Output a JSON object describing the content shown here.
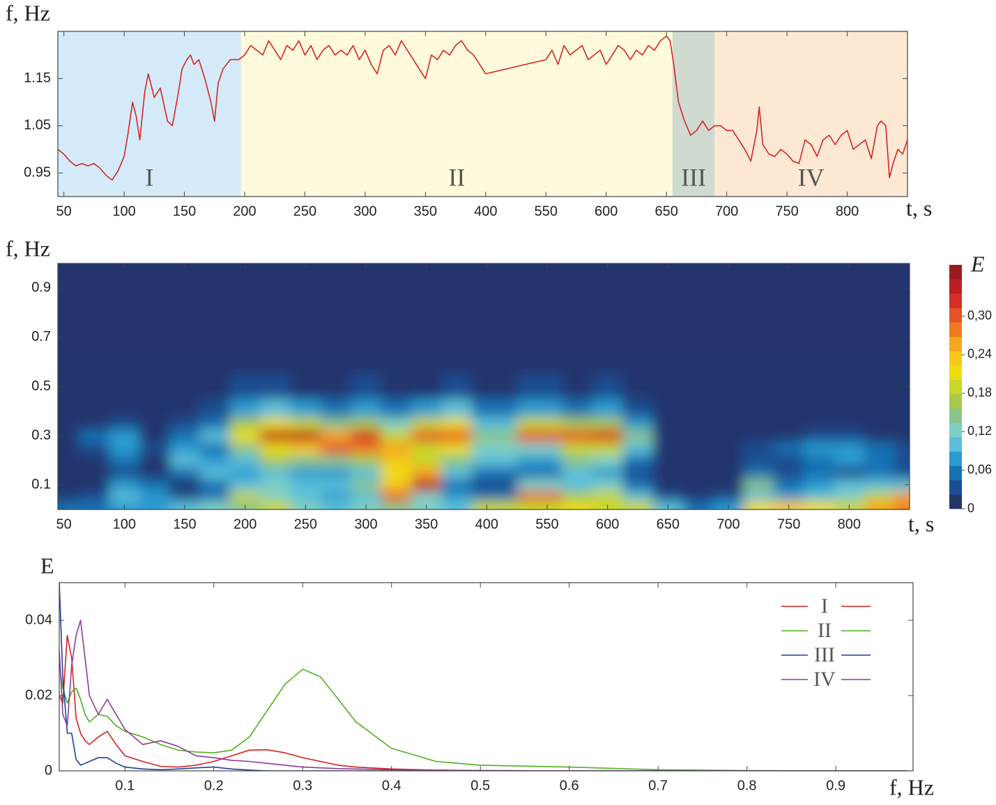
{
  "chart_data": [
    {
      "type": "line",
      "ylabel": "f, Hz",
      "xlabel": "t, s",
      "xlim": [
        45,
        850
      ],
      "xticks": [
        50,
        100,
        150,
        200,
        250,
        300,
        350,
        400,
        550,
        600,
        650,
        700,
        750,
        800
      ],
      "ylim": [
        0.9,
        1.25
      ],
      "yticks": [
        0.95,
        1.05,
        1.15
      ],
      "regions": [
        {
          "label": "I",
          "start": 45,
          "end": 197,
          "color": "#d5eaf8"
        },
        {
          "label": "II",
          "start": 197,
          "end": 655,
          "color": "#fefadb"
        },
        {
          "label": "III",
          "start": 655,
          "end": 690,
          "color": "#cfdbd0"
        },
        {
          "label": "IV",
          "start": 690,
          "end": 850,
          "color": "#fde8d3"
        }
      ],
      "x": [
        45,
        50,
        55,
        60,
        65,
        70,
        75,
        80,
        85,
        90,
        95,
        100,
        103,
        107,
        110,
        113,
        117,
        120,
        125,
        130,
        136,
        140,
        145,
        148,
        152,
        155,
        158,
        162,
        167,
        172,
        175,
        178,
        182,
        188,
        195,
        200,
        205,
        210,
        215,
        220,
        225,
        230,
        235,
        240,
        245,
        250,
        255,
        260,
        265,
        270,
        275,
        280,
        285,
        290,
        295,
        300,
        305,
        310,
        315,
        320,
        325,
        330,
        335,
        340,
        345,
        350,
        355,
        360,
        365,
        370,
        375,
        380,
        385,
        390,
        395,
        400,
        550,
        555,
        560,
        565,
        570,
        575,
        580,
        585,
        590,
        595,
        600,
        605,
        610,
        615,
        620,
        625,
        630,
        635,
        640,
        645,
        650,
        653,
        656,
        660,
        665,
        670,
        675,
        680,
        685,
        690,
        695,
        700,
        705,
        710,
        715,
        720,
        725,
        727,
        730,
        735,
        740,
        745,
        750,
        755,
        760,
        765,
        770,
        775,
        780,
        785,
        790,
        795,
        800,
        805,
        810,
        815,
        820,
        825,
        828,
        832,
        835,
        838,
        842,
        846,
        850
      ],
      "series": [
        {
          "color": "#d62424",
          "values": [
            1.0,
            0.99,
            0.975,
            0.965,
            0.97,
            0.965,
            0.97,
            0.96,
            0.945,
            0.935,
            0.955,
            0.985,
            1.03,
            1.1,
            1.07,
            1.02,
            1.12,
            1.16,
            1.11,
            1.13,
            1.06,
            1.05,
            1.12,
            1.17,
            1.19,
            1.2,
            1.18,
            1.19,
            1.15,
            1.1,
            1.06,
            1.14,
            1.17,
            1.19,
            1.19,
            1.2,
            1.22,
            1.21,
            1.2,
            1.23,
            1.21,
            1.19,
            1.22,
            1.21,
            1.23,
            1.2,
            1.22,
            1.19,
            1.21,
            1.22,
            1.2,
            1.21,
            1.2,
            1.22,
            1.19,
            1.21,
            1.18,
            1.16,
            1.21,
            1.22,
            1.2,
            1.23,
            1.21,
            1.19,
            1.17,
            1.15,
            1.2,
            1.19,
            1.21,
            1.2,
            1.22,
            1.23,
            1.21,
            1.2,
            1.18,
            1.16,
            1.19,
            1.21,
            1.18,
            1.22,
            1.2,
            1.21,
            1.22,
            1.19,
            1.2,
            1.21,
            1.18,
            1.2,
            1.22,
            1.21,
            1.19,
            1.21,
            1.2,
            1.22,
            1.21,
            1.23,
            1.24,
            1.23,
            1.18,
            1.1,
            1.06,
            1.03,
            1.04,
            1.06,
            1.04,
            1.05,
            1.05,
            1.04,
            1.04,
            1.02,
            1.0,
            0.975,
            1.04,
            1.09,
            1.01,
            0.99,
            0.985,
            1.0,
            0.99,
            0.975,
            0.97,
            1.02,
            1.01,
            0.985,
            1.02,
            1.03,
            1.01,
            1.03,
            1.04,
            1.0,
            1.01,
            1.02,
            0.98,
            1.05,
            1.06,
            1.05,
            0.94,
            0.97,
            1.0,
            0.99,
            1.02
          ]
        }
      ]
    },
    {
      "type": "heatmap",
      "ylabel": "f, Hz",
      "xlabel": "t, s",
      "colorbar_label": "E",
      "xlim": [
        45,
        850
      ],
      "xticks": [
        50,
        100,
        150,
        200,
        250,
        300,
        350,
        400,
        550,
        600,
        650,
        700,
        750,
        800
      ],
      "ylim": [
        0,
        1
      ],
      "yticks": [
        0.1,
        0.3,
        0.5,
        0.7,
        0.9
      ],
      "zlim": [
        0,
        0.38
      ],
      "zticks": [
        0,
        {
          "value": 0.06,
          "label": "0,06"
        },
        {
          "value": 0.12,
          "label": "0,12"
        },
        {
          "value": 0.18,
          "label": "0,18"
        },
        {
          "value": 0.24,
          "label": "0,24"
        },
        {
          "value": 0.3,
          "label": "0,30"
        }
      ],
      "colors": [
        "#24356e",
        "#1b4e90",
        "#1672b4",
        "#2a9bd0",
        "#5cbfd9",
        "#80cfc3",
        "#8ac48a",
        "#a6c94a",
        "#c8d62c",
        "#eddc10",
        "#f7c81a",
        "#f5a623",
        "#ee7b22",
        "#e4532a",
        "#d62f27",
        "#bb1f22",
        "#9b1a1d"
      ],
      "x": [
        50,
        75,
        100,
        125,
        150,
        175,
        200,
        225,
        250,
        275,
        300,
        325,
        350,
        375,
        400,
        550,
        575,
        600,
        625,
        650,
        675,
        700,
        725,
        750,
        775,
        800,
        825,
        850
      ],
      "y": [
        0.02,
        0.05,
        0.1,
        0.15,
        0.2,
        0.25,
        0.3,
        0.35,
        0.4,
        0.5
      ],
      "z": [
        [
          0.06,
          0.06,
          0.08,
          0.08,
          0.1,
          0.12,
          0.15,
          0.18,
          0.12,
          0.1,
          0.12,
          0.15,
          0.12,
          0.1,
          0.18,
          0.2,
          0.22,
          0.2,
          0.18,
          0.1,
          0.06,
          0.08,
          0.22,
          0.24,
          0.22,
          0.2,
          0.26,
          0.28
        ],
        [
          0.02,
          0.03,
          0.1,
          0.08,
          0.04,
          0.06,
          0.2,
          0.12,
          0.1,
          0.08,
          0.1,
          0.3,
          0.12,
          0.08,
          0.06,
          0.3,
          0.16,
          0.18,
          0.1,
          0.04,
          0.02,
          0.04,
          0.1,
          0.08,
          0.1,
          0.12,
          0.2,
          0.26
        ],
        [
          0,
          0.02,
          0.08,
          0.06,
          0.02,
          0.06,
          0.1,
          0.12,
          0.1,
          0.1,
          0.14,
          0.24,
          0.34,
          0.06,
          0.04,
          0.12,
          0.1,
          0.12,
          0.06,
          0.02,
          0,
          0.02,
          0.14,
          0.06,
          0.08,
          0.1,
          0.1,
          0.1
        ],
        [
          0,
          0,
          0.04,
          0.02,
          0.06,
          0.1,
          0.08,
          0.1,
          0.08,
          0.08,
          0.1,
          0.22,
          0.26,
          0.1,
          0.06,
          0.06,
          0.1,
          0.08,
          0.04,
          0,
          0,
          0,
          0.06,
          0.04,
          0.06,
          0.04,
          0.06,
          0.04
        ],
        [
          0,
          0.02,
          0.06,
          0.02,
          0.1,
          0.08,
          0.1,
          0.16,
          0.14,
          0.14,
          0.16,
          0.24,
          0.18,
          0.14,
          0.1,
          0.08,
          0.14,
          0.12,
          0.06,
          0,
          0,
          0,
          0.04,
          0.04,
          0.06,
          0.08,
          0.06,
          0.04
        ],
        [
          0,
          0.04,
          0.08,
          0.04,
          0.08,
          0.06,
          0.14,
          0.22,
          0.24,
          0.3,
          0.28,
          0.26,
          0.2,
          0.22,
          0.12,
          0.12,
          0.18,
          0.2,
          0.1,
          0,
          0,
          0.02,
          0.04,
          0.06,
          0.08,
          0.08,
          0.06,
          0.04
        ],
        [
          0,
          0.06,
          0.08,
          0.02,
          0.06,
          0.1,
          0.22,
          0.34,
          0.34,
          0.26,
          0.32,
          0.2,
          0.3,
          0.3,
          0.14,
          0.3,
          0.3,
          0.32,
          0.14,
          0,
          0,
          0,
          0.02,
          0.02,
          0.04,
          0.04,
          0.02,
          0.02
        ],
        [
          0,
          0.02,
          0.04,
          0,
          0.04,
          0.06,
          0.16,
          0.22,
          0.18,
          0.14,
          0.16,
          0.12,
          0.2,
          0.22,
          0.1,
          0.18,
          0.16,
          0.16,
          0.08,
          0,
          0,
          0,
          0,
          0,
          0,
          0,
          0,
          0
        ],
        [
          0,
          0,
          0.02,
          0,
          0.02,
          0.04,
          0.08,
          0.1,
          0.08,
          0.06,
          0.08,
          0.06,
          0.08,
          0.1,
          0.06,
          0.08,
          0.06,
          0.08,
          0.04,
          0,
          0,
          0,
          0,
          0,
          0,
          0,
          0,
          0
        ],
        [
          0,
          0,
          0,
          0,
          0,
          0,
          0.04,
          0.04,
          0.02,
          0.02,
          0.04,
          0.02,
          0.02,
          0.04,
          0.02,
          0.04,
          0.02,
          0.04,
          0,
          0,
          0,
          0,
          0,
          0,
          0,
          0,
          0,
          0
        ]
      ]
    },
    {
      "type": "line",
      "ylabel": "E",
      "xlabel": "f, Hz",
      "legend": "upper right",
      "xlim": [
        0.026,
        0.987
      ],
      "xticks": [
        0.1,
        0.2,
        0.3,
        0.4,
        0.5,
        0.6,
        0.7,
        0.8,
        0.9
      ],
      "ylim": [
        0,
        0.05
      ],
      "yticks": [
        0,
        0.02,
        0.04
      ],
      "x": [
        0.026,
        0.03,
        0.035,
        0.04,
        0.045,
        0.05,
        0.055,
        0.06,
        0.07,
        0.08,
        0.09,
        0.1,
        0.12,
        0.14,
        0.16,
        0.18,
        0.2,
        0.22,
        0.24,
        0.26,
        0.28,
        0.3,
        0.32,
        0.34,
        0.36,
        0.4,
        0.45,
        0.5,
        0.6,
        0.7,
        0.8,
        0.9,
        0.98
      ],
      "series": [
        {
          "name": "I",
          "color": "#d42020",
          "values": [
            0.02,
            0.018,
            0.036,
            0.03,
            0.014,
            0.01,
            0.008,
            0.007,
            0.009,
            0.0105,
            0.007,
            0.004,
            0.0025,
            0.0012,
            0.001,
            0.0015,
            0.0025,
            0.004,
            0.0055,
            0.0056,
            0.0048,
            0.0035,
            0.0025,
            0.0015,
            0.001,
            0.0005,
            0.0002,
            0.0001,
            0,
            0,
            0,
            0,
            0
          ]
        },
        {
          "name": "II",
          "color": "#4caf1e",
          "values": [
            0.028,
            0.022,
            0.018,
            0.021,
            0.022,
            0.019,
            0.015,
            0.013,
            0.015,
            0.0145,
            0.012,
            0.0105,
            0.009,
            0.007,
            0.0055,
            0.005,
            0.0048,
            0.0055,
            0.009,
            0.016,
            0.023,
            0.027,
            0.025,
            0.019,
            0.013,
            0.006,
            0.0025,
            0.0015,
            0.001,
            0.0003,
            0.0001,
            0,
            0
          ]
        },
        {
          "name": "III",
          "color": "#1f3f9a",
          "values": [
            0.05,
            0.025,
            0.01,
            0.01,
            0.003,
            0.0015,
            0.002,
            0.0025,
            0.0035,
            0.0035,
            0.002,
            0.001,
            0.0005,
            0.0003,
            0.0005,
            0.0008,
            0.001,
            0.0005,
            0.0002,
            0,
            0,
            0,
            0,
            0,
            0,
            0,
            0,
            0,
            0,
            0,
            0,
            0,
            0
          ]
        },
        {
          "name": "IV",
          "color": "#8e3a96",
          "values": [
            0.032,
            0.015,
            0.012,
            0.028,
            0.036,
            0.04,
            0.03,
            0.02,
            0.015,
            0.019,
            0.015,
            0.011,
            0.007,
            0.008,
            0.0065,
            0.004,
            0.0035,
            0.0028,
            0.0025,
            0.002,
            0.0015,
            0.001,
            0.0008,
            0.0006,
            0.0005,
            0.0003,
            0.0002,
            0.0001,
            0,
            0,
            0,
            0,
            0
          ]
        }
      ]
    }
  ]
}
